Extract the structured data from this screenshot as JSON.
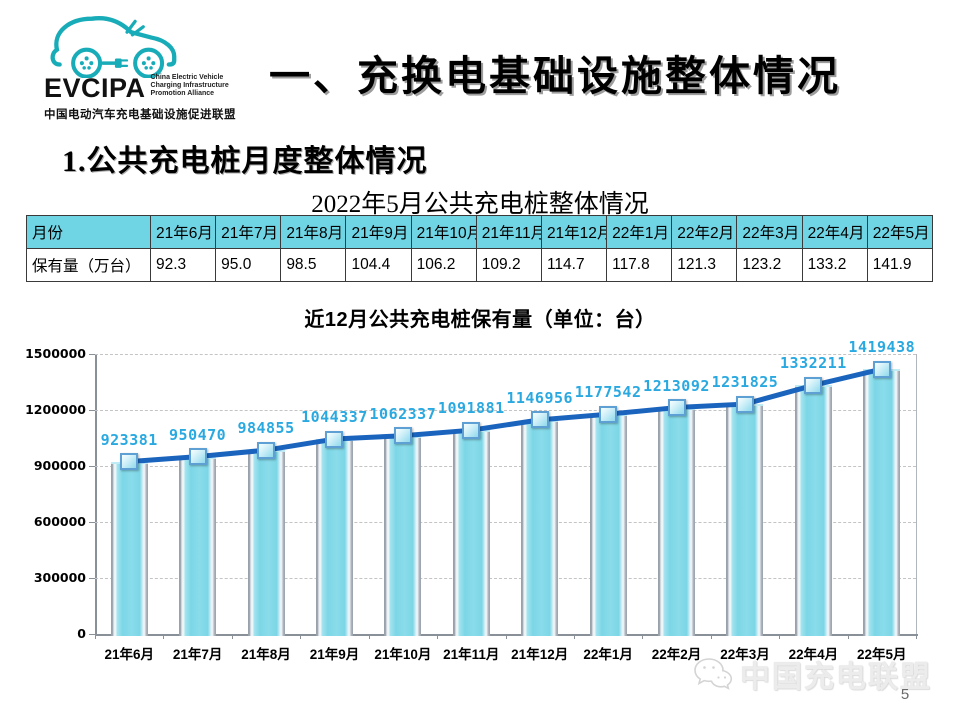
{
  "colors": {
    "banner_teal": "#0EA0AA",
    "logo_teal": "#18ACB8",
    "table_header_fill": "#6FD5E5",
    "bar_fill": "#85DCEA",
    "line_blue": "#1A64BE",
    "data_label_blue": "#2AA9E1",
    "grid_gray": "#C4C4C4",
    "axis_gray": "#8A9097"
  },
  "logo": {
    "acronym": "EVCIPA",
    "tagline_lines": [
      "China Electric Vehicle",
      "Charging Infrastructure",
      "Promotion Alliance"
    ],
    "chinese_name": "中国电动汽车充电基础设施促进联盟"
  },
  "header": {
    "title": "一、充换电基础设施整体情况"
  },
  "section": {
    "heading": "1.公共充电桩月度整体情况"
  },
  "table": {
    "title": "2022年5月公共充电桩整体情况",
    "header_row": [
      "月份",
      "21年6月",
      "21年7月",
      "21年8月",
      "21年9月",
      "21年10月",
      "21年11月",
      "21年12月",
      "22年1月",
      "22年2月",
      "22年3月",
      "22年4月",
      "22年5月"
    ],
    "data_row": [
      "保有量（万台）",
      "92.3",
      "95.0",
      "98.5",
      "104.4",
      "106.2",
      "109.2",
      "114.7",
      "117.8",
      "121.3",
      "123.2",
      "133.2",
      "141.9"
    ]
  },
  "chart_data": {
    "type": "bar",
    "title": "近12月公共充电桩保有量（单位：台）",
    "categories": [
      "21年6月",
      "21年7月",
      "21年8月",
      "21年9月",
      "21年10月",
      "21年11月",
      "21年12月",
      "22年1月",
      "22年2月",
      "22年3月",
      "22年4月",
      "22年5月"
    ],
    "values": [
      923381,
      950470,
      984855,
      1044337,
      1062337,
      1091881,
      1146956,
      1177542,
      1213092,
      1231825,
      1332211,
      1419438
    ],
    "overlay_line": true,
    "marker": "square",
    "ylim": [
      0,
      1500000
    ],
    "yticks": [
      0,
      300000,
      600000,
      900000,
      1200000,
      1500000
    ],
    "grid": true,
    "legend": "none",
    "xlabel": "",
    "ylabel": ""
  },
  "footer": {
    "watermark": "中国充电联盟",
    "page_number": "5"
  }
}
